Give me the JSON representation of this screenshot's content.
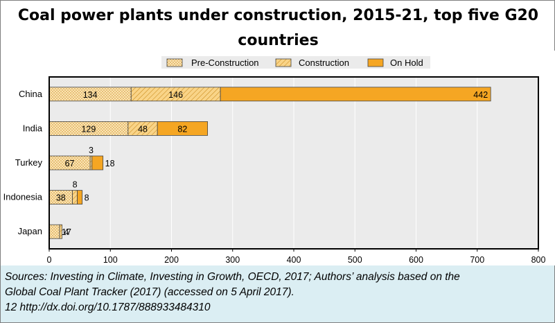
{
  "title": "Coal power plants under construction, 2015-21, top five G20 countries",
  "title_lines": [
    "Coal power plants under construction, 2015-21, top five G20",
    "countries"
  ],
  "source": {
    "line1": "Sources: Investing in Climate, Investing in Growth, OECD, 2017; Authors’ analysis based on the",
    "line2": "Global Coal Plant Tracker (2017) (accessed on 5 April 2017).",
    "line3": "12 http://dx.doi.org/10.1787/888933484310"
  },
  "colors": {
    "pre_construction": "#fbe4b4",
    "construction": "#f9d488",
    "on_hold": "#f5a623",
    "plot_bg": "#ebebeb",
    "source_bg": "#dbeef3"
  },
  "chart_data": {
    "type": "bar",
    "orientation": "horizontal",
    "stacked": true,
    "title": "Coal power plants under construction, 2015-21, top five G20 countries",
    "categories": [
      "China",
      "India",
      "Turkey",
      "Indonesia",
      "Japan"
    ],
    "series": [
      {
        "name": "Pre-Construction",
        "values": [
          134,
          129,
          67,
          38,
          17
        ]
      },
      {
        "name": "Construction",
        "values": [
          146,
          48,
          3,
          8,
          4
        ]
      },
      {
        "name": "On Hold",
        "values": [
          442,
          82,
          18,
          8,
          0
        ]
      }
    ],
    "data_labels": [
      [
        "134",
        "146",
        "442"
      ],
      [
        "129",
        "48",
        "82"
      ],
      [
        "67",
        "3",
        "18"
      ],
      [
        "38",
        "8",
        "8"
      ],
      [
        "17",
        "4",
        ""
      ]
    ],
    "xlim": [
      0,
      800
    ],
    "xticks": [
      0,
      100,
      200,
      300,
      400,
      500,
      600,
      700,
      800
    ],
    "grid": true,
    "legend_position": "top"
  }
}
